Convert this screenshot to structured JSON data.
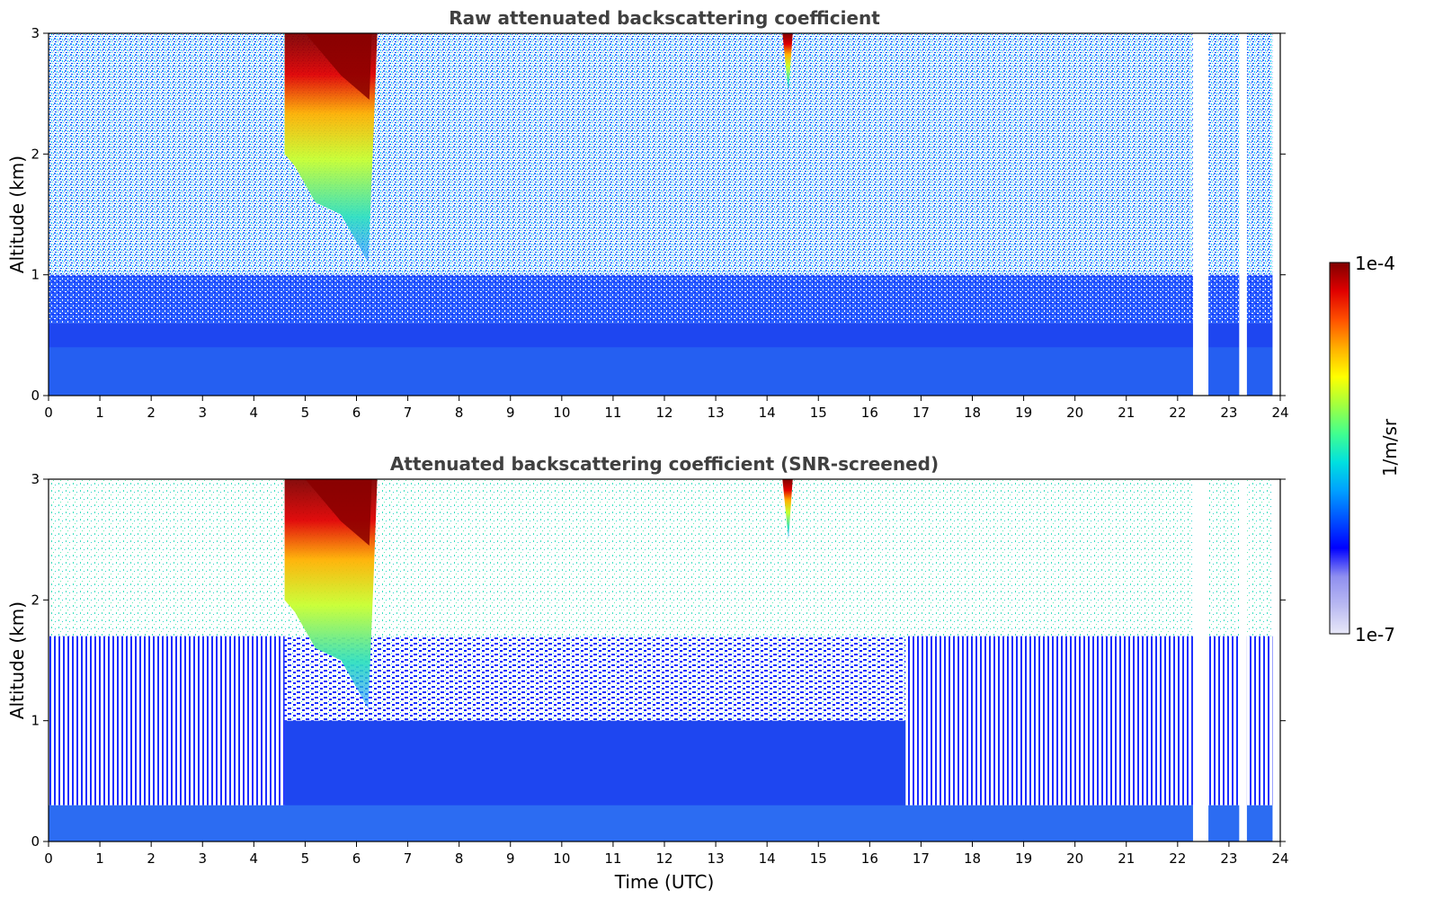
{
  "figure": {
    "colorbar": {
      "label": "1/m/sr",
      "max_label": "1e-4",
      "min_label": "1e-7",
      "colormap": [
        "#e8e8f8",
        "#b9b9f2",
        "#8f8ff0",
        "#0000ff",
        "#0050ff",
        "#00a0ff",
        "#00e0e0",
        "#40ff90",
        "#a0ff40",
        "#ffff00",
        "#ffb000",
        "#ff5000",
        "#e00000",
        "#800000"
      ]
    }
  },
  "chart_data": [
    {
      "type": "heatmap",
      "title": "Raw attenuated backscattering coefficient",
      "xlabel": "",
      "ylabel": "Altitude (km)",
      "xlim": [
        0,
        24
      ],
      "ylim": [
        0,
        3
      ],
      "x_ticks": [
        "0",
        "1",
        "2",
        "3",
        "4",
        "5",
        "6",
        "7",
        "8",
        "9",
        "10",
        "11",
        "12",
        "13",
        "14",
        "15",
        "16",
        "17",
        "18",
        "19",
        "20",
        "21",
        "22",
        "23",
        "24"
      ],
      "y_ticks": [
        "0",
        "1",
        "2",
        "3"
      ],
      "color_scale": "log",
      "color_range": [
        1e-07,
        0.0001
      ],
      "boundary_layer_top_km": 0.6,
      "cloud_features": [
        {
          "time_start": 4.6,
          "time_end": 6.3,
          "altitude_base_km": 1.1,
          "altitude_top_km": 3.0,
          "peak_value": 0.0001
        },
        {
          "time_start": 14.3,
          "time_end": 14.5,
          "altitude_base_km": 2.5,
          "altitude_top_km": 3.0,
          "peak_value": 0.0001
        }
      ],
      "missing_data_times": [
        [
          22.3,
          22.6
        ],
        [
          23.2,
          23.35
        ],
        [
          23.85,
          24.0
        ]
      ]
    },
    {
      "type": "heatmap",
      "title": "Attenuated backscattering coefficient (SNR-screened)",
      "xlabel": "Time (UTC)",
      "ylabel": "Altitude (km)",
      "xlim": [
        0,
        24
      ],
      "ylim": [
        0,
        3
      ],
      "x_ticks": [
        "0",
        "1",
        "2",
        "3",
        "4",
        "5",
        "6",
        "7",
        "8",
        "9",
        "10",
        "11",
        "12",
        "13",
        "14",
        "15",
        "16",
        "17",
        "18",
        "19",
        "20",
        "21",
        "22",
        "23",
        "24"
      ],
      "y_ticks": [
        "0",
        "1",
        "2",
        "3"
      ],
      "color_scale": "log",
      "color_range": [
        1e-07,
        0.0001
      ],
      "boundary_layer_top_km": 0.3,
      "cloud_features": [
        {
          "time_start": 4.6,
          "time_end": 6.3,
          "altitude_base_km": 1.1,
          "altitude_top_km": 3.0,
          "peak_value": 0.0001
        },
        {
          "time_start": 14.3,
          "time_end": 14.5,
          "altitude_base_km": 2.5,
          "altitude_top_km": 3.0,
          "peak_value": 0.0001
        }
      ],
      "missing_data_times": [
        [
          22.3,
          22.6
        ],
        [
          23.2,
          23.35
        ],
        [
          23.85,
          24.0
        ]
      ]
    }
  ]
}
